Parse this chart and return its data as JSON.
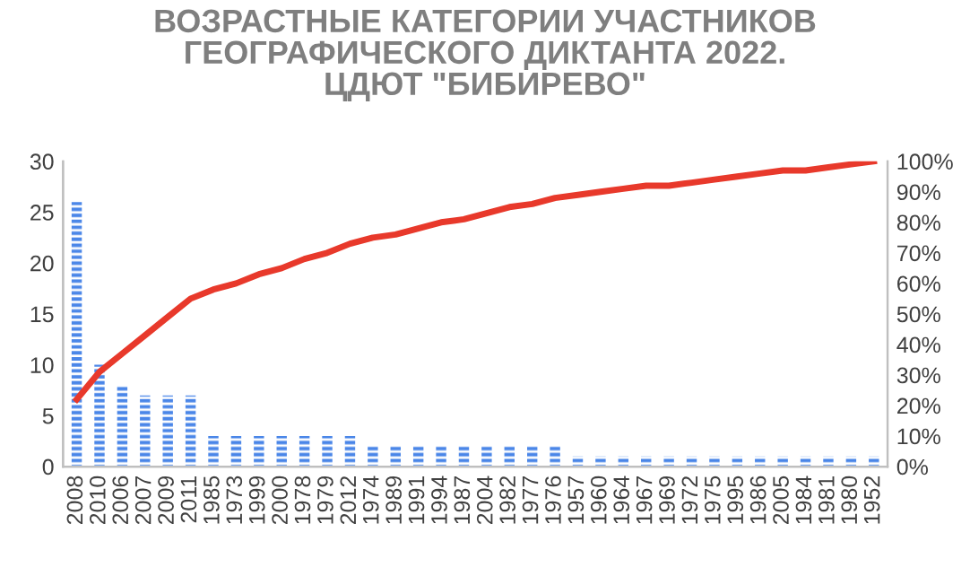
{
  "chart_data": {
    "type": "bar",
    "title": "ВОЗРАСТНЫЕ КАТЕГОРИИ УЧАСТНИКОВ\nГЕОГРАФИЧЕСКОГО ДИКТАНТА 2022.\nЦДЮТ \"БИБИРЕВО\"",
    "categories": [
      "2008",
      "2010",
      "2006",
      "2007",
      "2009",
      "2011",
      "1985",
      "1973",
      "1999",
      "2000",
      "1978",
      "1979",
      "2012",
      "1974",
      "1989",
      "1991",
      "1994",
      "1987",
      "2004",
      "1982",
      "1977",
      "1976",
      "1957",
      "1960",
      "1964",
      "1967",
      "1969",
      "1972",
      "1975",
      "1995",
      "1986",
      "2005",
      "1984",
      "1981",
      "1980",
      "1952"
    ],
    "series": [
      {
        "color": "#4a86e8",
        "values": [
          26,
          10,
          8,
          7,
          7,
          7,
          3,
          3,
          3,
          3,
          3,
          3,
          3,
          2,
          2,
          2,
          2,
          2,
          2,
          2,
          2,
          2,
          1,
          1,
          1,
          1,
          1,
          1,
          1,
          1,
          1,
          1,
          1,
          1,
          1,
          1
        ]
      },
      {
        "type": "line",
        "axis": "y2",
        "color": "#e8392b",
        "values": [
          22,
          31,
          37,
          43,
          49,
          55,
          58,
          60,
          63,
          65,
          68,
          70,
          73,
          75,
          76,
          78,
          80,
          81,
          83,
          85,
          86,
          88,
          89,
          90,
          91,
          92,
          92,
          93,
          94,
          95,
          96,
          97,
          97,
          98,
          99,
          100
        ]
      }
    ],
    "ylim": [
      0,
      30
    ],
    "yticks": [
      0,
      5,
      10,
      15,
      20,
      25,
      30
    ],
    "y2lim": [
      0,
      100
    ],
    "y2ticks": [
      {
        "value": 0,
        "label": "0%"
      },
      {
        "value": 10,
        "label": "10%"
      },
      {
        "value": 20,
        "label": "20%"
      },
      {
        "value": 30,
        "label": "30%"
      },
      {
        "value": 40,
        "label": "40%"
      },
      {
        "value": 50,
        "label": "50%"
      },
      {
        "value": 60,
        "label": "60%"
      },
      {
        "value": 70,
        "label": "70%"
      },
      {
        "value": 80,
        "label": "80%"
      },
      {
        "value": 90,
        "label": "90%"
      },
      {
        "value": 100,
        "label": "100%"
      }
    ],
    "grid": false
  }
}
